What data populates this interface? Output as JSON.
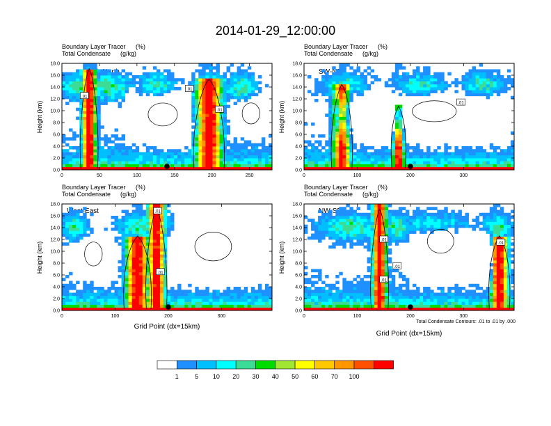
{
  "figure": {
    "title": "2014-01-29_12:00:00",
    "footnote": "Total Condensate Contours: .01 to .01 by .000"
  },
  "colorbar": {
    "colors": [
      "#ffffff",
      "#1e90ff",
      "#00bfff",
      "#00ffff",
      "#3cdc96",
      "#00dc00",
      "#a0e632",
      "#ffff00",
      "#ffc800",
      "#ff9600",
      "#ff5000",
      "#ff0000"
    ],
    "labels": [
      "1",
      "5",
      "10",
      "20",
      "30",
      "40",
      "50",
      "60",
      "70",
      "100"
    ]
  },
  "chart_data": [
    {
      "type": "heatmap",
      "name": "South-North",
      "title_left_line1": "Boundary Layer Tracer",
      "title_right_line1": "(%)",
      "title_left_line2": "Total Condensate",
      "title_right_line2": "(g/kg)",
      "ylabel": "Height (km)",
      "xlabel": "",
      "xlim": [
        0,
        280
      ],
      "ylim": [
        0,
        18
      ],
      "xticks": [
        0,
        50,
        100,
        150,
        200,
        250
      ],
      "yticks": [
        0,
        2,
        4,
        6,
        8,
        10,
        12,
        14,
        16,
        18
      ],
      "ytick_labels": [
        "0.0",
        "2.0",
        "4.0",
        "6.0",
        "8.0",
        "10.0",
        "12.0",
        "14.0",
        "16.0",
        "18.0"
      ],
      "marker_x": 140,
      "contour_labels": [
        {
          "text": ".01",
          "x": 30,
          "y": 12.5
        },
        {
          "text": ".01",
          "x": 170,
          "y": 13.7
        },
        {
          "text": ".01",
          "x": 210,
          "y": 10.2
        }
      ]
    },
    {
      "type": "heatmap",
      "name": "SW-NE",
      "title_left_line1": "Boundary Layer Tracer",
      "title_right_line1": "(%)",
      "title_left_line2": "Total Condensate",
      "title_right_line2": "(g/kg)",
      "ylabel": "Height (km)",
      "xlabel": "",
      "xlim": [
        0,
        395
      ],
      "ylim": [
        0,
        18
      ],
      "xticks": [
        0,
        100,
        200,
        300
      ],
      "yticks": [
        0,
        2,
        4,
        6,
        8,
        10,
        12,
        14,
        16,
        18
      ],
      "ytick_labels": [
        "0.0",
        "2.0",
        "4.0",
        "6.0",
        "8.0",
        "10.0",
        "12.0",
        "14.0",
        "16.0",
        "18.0"
      ],
      "marker_x": 200,
      "contour_labels": [
        {
          "text": ".01",
          "x": 295,
          "y": 11.4
        }
      ]
    },
    {
      "type": "heatmap",
      "name": "West-East",
      "title_left_line1": "Boundary Layer Tracer",
      "title_right_line1": "(%)",
      "title_left_line2": "Total Condensate",
      "title_right_line2": "(g/kg)",
      "ylabel": "Height (km)",
      "xlabel": "Grid Point  (dx=15km)",
      "xlim": [
        0,
        395
      ],
      "ylim": [
        0,
        18
      ],
      "xticks": [
        0,
        100,
        200,
        300
      ],
      "yticks": [
        0,
        2,
        4,
        6,
        8,
        10,
        12,
        14,
        16,
        18
      ],
      "ytick_labels": [
        "0.0",
        "2.0",
        "4.0",
        "6.0",
        "8.0",
        "10.0",
        "12.0",
        "14.0",
        "16.0",
        "18.0"
      ],
      "marker_x": 200,
      "contour_labels": [
        {
          "text": ".01",
          "x": 180,
          "y": 16.8
        },
        {
          "text": ".01",
          "x": 185,
          "y": 6.5
        }
      ]
    },
    {
      "type": "heatmap",
      "name": "NW-SE",
      "title_left_line1": "Boundary Layer Tracer",
      "title_right_line1": "(%)",
      "title_left_line2": "Total Condensate",
      "title_right_line2": "(g/kg)",
      "ylabel": "Height (km)",
      "xlabel": "Grid Point  (dx=15km)",
      "xlim": [
        0,
        395
      ],
      "ylim": [
        0,
        18
      ],
      "xticks": [
        0,
        100,
        200,
        300
      ],
      "yticks": [
        0,
        2,
        4,
        6,
        8,
        10,
        12,
        14,
        16,
        18
      ],
      "ytick_labels": [
        "0.0",
        "2.0",
        "4.0",
        "6.0",
        "8.0",
        "10.0",
        "12.0",
        "14.0",
        "16.0",
        "18.0"
      ],
      "marker_x": 200,
      "contour_labels": [
        {
          "text": ".01",
          "x": 150,
          "y": 12
        },
        {
          "text": ".01",
          "x": 175,
          "y": 7.5
        },
        {
          "text": ".01",
          "x": 150,
          "y": 5.2
        },
        {
          "text": ".01",
          "x": 370,
          "y": 11.5
        }
      ]
    }
  ]
}
